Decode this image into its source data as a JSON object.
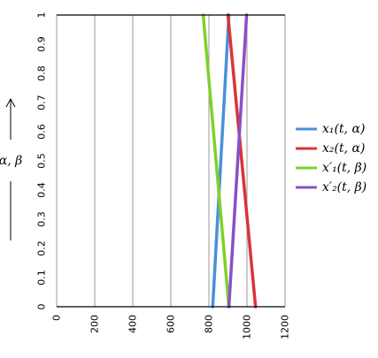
{
  "chart_data": {
    "type": "line",
    "ylabel": "α, β",
    "xlim": [
      0,
      1200
    ],
    "ylim": [
      0,
      1
    ],
    "x_ticks": [
      "0",
      "200",
      "400",
      "600",
      "800",
      "1000",
      "1200"
    ],
    "y_ticks": [
      "0",
      "0.1",
      "0.2",
      "0.3",
      "0.4",
      "0.5",
      "0.6",
      "0.7",
      "0.8",
      "0.9",
      "1"
    ],
    "grid": "vertical",
    "legend_position": "right",
    "series": [
      {
        "name": "x₁(t, α)",
        "color": "#4a90d9",
        "points": [
          [
            820,
            0
          ],
          [
            905,
            1
          ]
        ]
      },
      {
        "name": "x₂(t, α)",
        "color": "#d9343a",
        "points": [
          [
            900,
            1
          ],
          [
            1045,
            0
          ]
        ]
      },
      {
        "name": "x′₁(t, β)",
        "color": "#7fd12a",
        "points": [
          [
            770,
            1
          ],
          [
            905,
            0
          ]
        ]
      },
      {
        "name": "x′₂(t, β)",
        "color": "#8a4fc9",
        "points": [
          [
            905,
            0
          ],
          [
            998,
            1
          ]
        ]
      }
    ]
  }
}
